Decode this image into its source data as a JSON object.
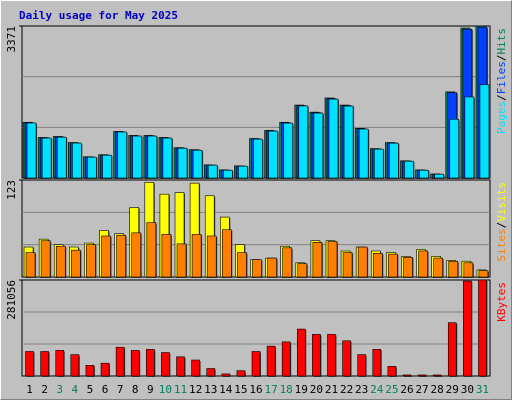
{
  "legend_separator": "/",
  "chart_data": [
    {
      "type": "bar",
      "title": "Daily usage for May 2025",
      "ylim": [
        0,
        3371
      ],
      "yticks": [
        3371
      ],
      "series": [
        {
          "name": "Hits",
          "color": "#00805c",
          "values": [
            1236,
            899,
            921,
            787,
            472,
            517,
            1034,
            944,
            944,
            899,
            674,
            629,
            292,
            180,
            270,
            876,
            1056,
            1236,
            1618,
            1461,
            1775,
            1618,
            1101,
            652,
            787,
            382,
            180,
            90,
            1910,
            3326,
            3371
          ]
        },
        {
          "name": "Files",
          "color": "#0040ff",
          "values": [
            1225,
            890,
            912,
            780,
            466,
            510,
            1025,
            935,
            936,
            890,
            667,
            622,
            288,
            176,
            266,
            868,
            1046,
            1225,
            1605,
            1450,
            1762,
            1606,
            1092,
            645,
            780,
            377,
            176,
            87,
            1895,
            3300,
            3345
          ]
        },
        {
          "name": "Pages",
          "color": "#00e0ff",
          "values": [
            1220,
            885,
            905,
            775,
            462,
            505,
            1020,
            930,
            930,
            885,
            660,
            615,
            284,
            172,
            262,
            862,
            1040,
            1218,
            1598,
            1440,
            1750,
            1595,
            1085,
            640,
            772,
            372,
            172,
            84,
            1303,
            1798,
            2068
          ]
        }
      ]
    },
    {
      "type": "bar",
      "ylim": [
        0,
        123
      ],
      "yticks": [
        123
      ],
      "series": [
        {
          "name": "Visits",
          "color": "#ffff00",
          "values": [
            38,
            48,
            41,
            38,
            43,
            59,
            55,
            88,
            120,
            105,
            107,
            119,
            103,
            76,
            41,
            22,
            24,
            39,
            18,
            46,
            46,
            33,
            38,
            33,
            31,
            26,
            35,
            26,
            21,
            20,
            9
          ]
        },
        {
          "name": "Sites",
          "color": "#ff8000",
          "values": [
            31,
            46,
            39,
            34,
            41,
            52,
            53,
            56,
            69,
            54,
            42,
            54,
            52,
            60,
            31,
            22,
            24,
            37,
            17,
            44,
            45,
            31,
            38,
            30,
            29,
            25,
            33,
            24,
            20,
            18,
            8
          ]
        }
      ]
    },
    {
      "type": "bar",
      "ylim": [
        0,
        281056
      ],
      "yticks": [
        281056
      ],
      "series": [
        {
          "name": "KBytes",
          "color": "#ff0000",
          "values": [
            71800,
            71800,
            74900,
            62500,
            31200,
            37500,
            84300,
            74900,
            78100,
            68700,
            56200,
            46800,
            21900,
            6200,
            15600,
            71800,
            87400,
            99900,
            137400,
            121800,
            121800,
            103000,
            62500,
            78100,
            28100,
            3100,
            3100,
            3100,
            156100,
            277900,
            281056
          ]
        }
      ],
      "categories": [
        "1",
        "2",
        "3",
        "4",
        "5",
        "6",
        "7",
        "8",
        "9",
        "10",
        "11",
        "12",
        "13",
        "14",
        "15",
        "16",
        "17",
        "18",
        "19",
        "20",
        "21",
        "22",
        "23",
        "24",
        "25",
        "26",
        "27",
        "28",
        "29",
        "30",
        "31"
      ],
      "category_colors": [
        "#000000",
        "#000000",
        "#00805c",
        "#00805c",
        "#000000",
        "#000000",
        "#000000",
        "#000000",
        "#000000",
        "#00805c",
        "#00805c",
        "#000000",
        "#000000",
        "#000000",
        "#000000",
        "#000000",
        "#00805c",
        "#00805c",
        "#000000",
        "#000000",
        "#000000",
        "#000000",
        "#000000",
        "#00805c",
        "#00805c",
        "#000000",
        "#000000",
        "#000000",
        "#000000",
        "#000000",
        "#00805c"
      ]
    }
  ]
}
